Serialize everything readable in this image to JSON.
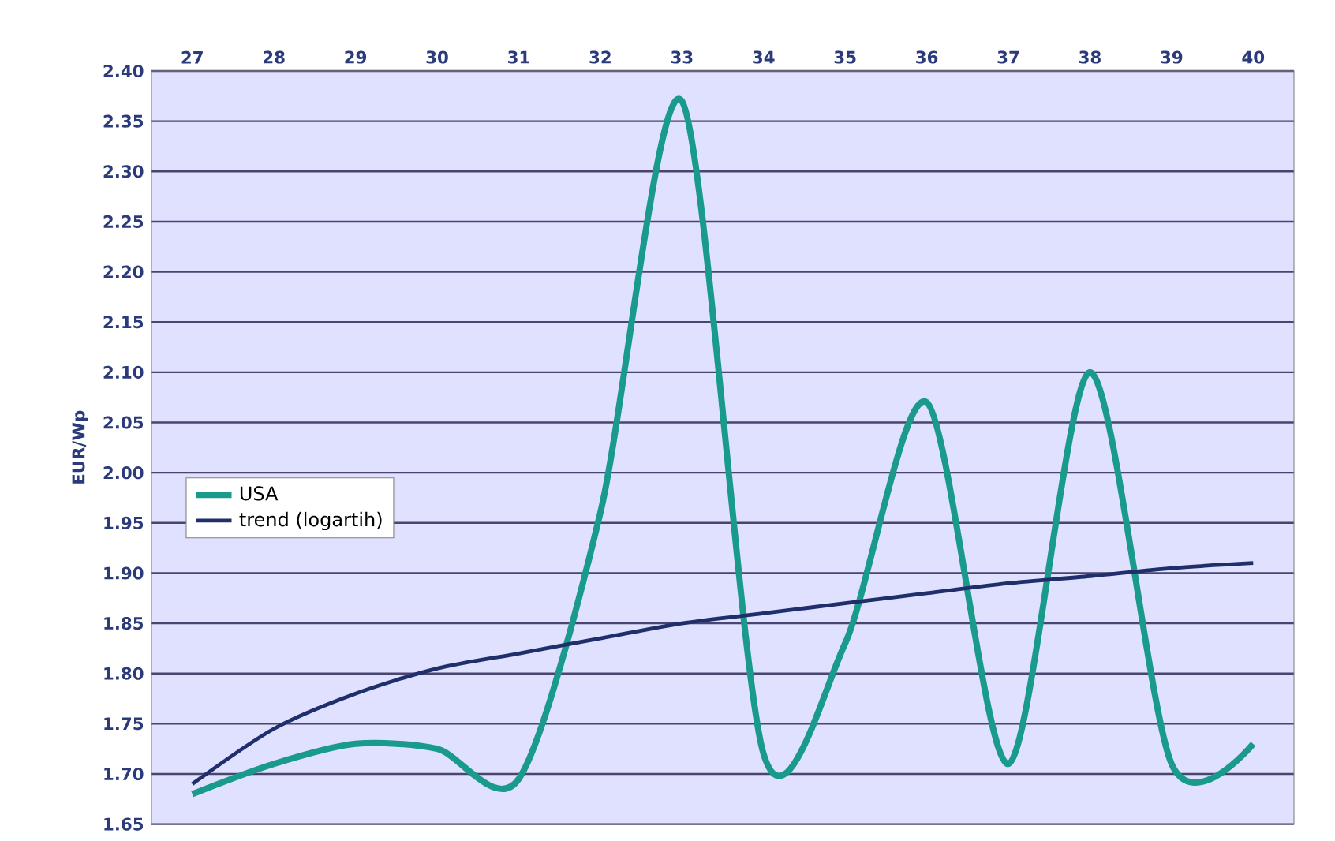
{
  "chart_data": {
    "type": "line",
    "ylabel": "EUR/Wp",
    "categories": [
      "27",
      "28",
      "29",
      "30",
      "31",
      "32",
      "33",
      "34",
      "35",
      "36",
      "37",
      "38",
      "39",
      "40"
    ],
    "series": [
      {
        "name": "USA",
        "color": "#1a9a8a",
        "values": [
          1.68,
          1.71,
          1.73,
          1.725,
          1.695,
          1.96,
          2.37,
          1.72,
          1.83,
          2.07,
          1.71,
          2.1,
          1.71,
          1.73
        ]
      },
      {
        "name": "trend (logartih)",
        "color": "#1f2f6b",
        "values": [
          1.69,
          1.745,
          1.78,
          1.805,
          1.82,
          1.835,
          1.85,
          1.86,
          1.87,
          1.88,
          1.89,
          1.897,
          1.905,
          1.91
        ]
      }
    ],
    "ylim": [
      1.65,
      2.4
    ],
    "yticks": [
      {
        "value": 1.65,
        "label": "1.65"
      },
      {
        "value": 1.7,
        "label": "1.70"
      },
      {
        "value": 1.75,
        "label": "1.75"
      },
      {
        "value": 1.8,
        "label": "1.80"
      },
      {
        "value": 1.85,
        "label": "1.85"
      },
      {
        "value": 1.9,
        "label": "1.90"
      },
      {
        "value": 1.95,
        "label": "1.95"
      },
      {
        "value": 2.0,
        "label": "2.00"
      },
      {
        "value": 2.05,
        "label": "2.05"
      },
      {
        "value": 2.1,
        "label": "2.10"
      },
      {
        "value": 2.15,
        "label": "2.15"
      },
      {
        "value": 2.2,
        "label": "2.20"
      },
      {
        "value": 2.25,
        "label": "2.25"
      },
      {
        "value": 2.3,
        "label": "2.30"
      },
      {
        "value": 2.35,
        "label": "2.35"
      },
      {
        "value": 2.4,
        "label": "2.40"
      }
    ],
    "grid": true,
    "legend": "left",
    "marker": "none",
    "line_style": "solid"
  }
}
